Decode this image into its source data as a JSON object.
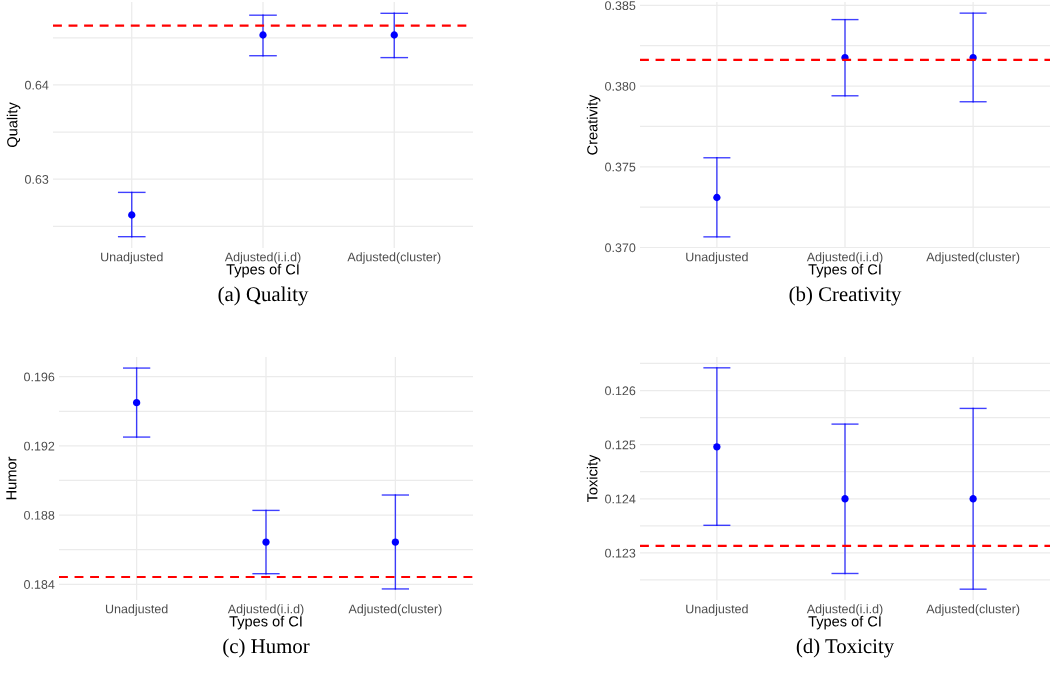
{
  "chart_data": [
    {
      "type": "scatter",
      "title": "(a) Quality",
      "xlabel": "Types of CI",
      "ylabel": "Quality",
      "categories": [
        "Unadjusted",
        "Adjusted(i.i.d)",
        "Adjusted(cluster)"
      ],
      "series": [
        {
          "color": "#0000ff",
          "values": [
            0.6262,
            0.6453,
            0.6453
          ],
          "errors": [
            [
              0.6239,
              0.6286
            ],
            [
              0.6431,
              0.6474
            ],
            [
              0.6429,
              0.6476
            ]
          ]
        }
      ],
      "ylim": [
        0.6227,
        0.6488
      ],
      "yticks": [
        {
          "value": 0.625,
          "label": null
        },
        0.63,
        {
          "value": 0.635,
          "label": null
        },
        0.64,
        {
          "value": 0.645,
          "label": null
        }
      ],
      "ref_lines": [
        {
          "axis": "y",
          "value": 0.6463,
          "color": "#ff0000",
          "line_style": "dashed"
        }
      ],
      "grid": true,
      "marker": "circle"
    },
    {
      "type": "scatter",
      "title": "(b) Creativity",
      "xlabel": "Types of CI",
      "ylabel": "Creativity",
      "categories": [
        "Unadjusted",
        "Adjusted(i.i.d)",
        "Adjusted(cluster)"
      ],
      "series": [
        {
          "color": "#0000ff",
          "values": [
            0.3731,
            0.38176,
            0.38176
          ],
          "errors": [
            [
              0.37066,
              0.37556
            ],
            [
              0.3794,
              0.38412
            ],
            [
              0.37903,
              0.38452
            ]
          ]
        }
      ],
      "ylim": [
        0.36997,
        0.38521
      ],
      "yticks": [
        "0.370",
        {
          "value": 0.3725,
          "label": null
        },
        0.375,
        {
          "value": 0.3775,
          "label": null
        },
        "0.380",
        {
          "value": 0.3825,
          "label": null
        },
        0.385
      ],
      "ref_lines": [
        {
          "axis": "y",
          "value": 0.38162,
          "color": "#ff0000",
          "line_style": "dashed"
        }
      ],
      "grid": true,
      "marker": "circle"
    },
    {
      "type": "scatter",
      "title": "(c) Humor",
      "xlabel": "Types of CI",
      "ylabel": "Humor",
      "categories": [
        "Unadjusted",
        "Adjusted(i.i.d)",
        "Adjusted(cluster)"
      ],
      "series": [
        {
          "color": "#0000ff",
          "values": [
            0.1945,
            0.18644,
            0.18644
          ],
          "errors": [
            [
              0.19251,
              0.1965
            ],
            [
              0.18461,
              0.18827
            ],
            [
              0.18373,
              0.18916
            ]
          ]
        }
      ],
      "ylim": [
        0.18309,
        0.19714
      ],
      "yticks": [
        0.184,
        {
          "value": 0.186,
          "label": null
        },
        0.188,
        {
          "value": 0.19,
          "label": null
        },
        0.192,
        {
          "value": 0.194,
          "label": null
        },
        0.196
      ],
      "ref_lines": [
        {
          "axis": "y",
          "value": 0.18442,
          "color": "#ff0000",
          "line_style": "dashed"
        }
      ],
      "grid": true,
      "marker": "circle"
    },
    {
      "type": "scatter",
      "title": "(d) Toxicity",
      "xlabel": "Types of CI",
      "ylabel": "Toxicity",
      "categories": [
        "Unadjusted",
        "Adjusted(i.i.d)",
        "Adjusted(cluster)"
      ],
      "series": [
        {
          "color": "#0000ff",
          "values": [
            0.12496,
            0.124,
            0.124
          ],
          "errors": [
            [
              0.12351,
              0.12642
            ],
            [
              0.12262,
              0.12538
            ],
            [
              0.12233,
              0.12567
            ]
          ]
        }
      ],
      "ylim": [
        0.12213,
        0.12662
      ],
      "yticks": [
        {
          "value": 0.1225,
          "label": null
        },
        0.123,
        {
          "value": 0.1235,
          "label": null
        },
        0.124,
        {
          "value": 0.1245,
          "label": null
        },
        0.125,
        {
          "value": 0.1255,
          "label": null
        },
        0.126,
        {
          "value": 0.1265,
          "label": null
        }
      ],
      "ref_lines": [
        {
          "axis": "y",
          "value": 0.12313,
          "color": "#ff0000",
          "line_style": "dashed"
        }
      ],
      "grid": true,
      "marker": "circle"
    }
  ]
}
